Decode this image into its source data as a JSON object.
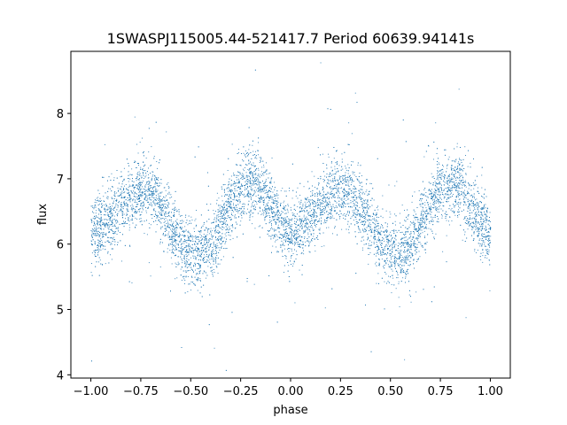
{
  "chart_data": {
    "type": "scatter",
    "title": "1SWASPJ115005.44-521417.7 Period 60639.94141s",
    "xlabel": "phase",
    "ylabel": "flux",
    "xlim": [
      -1.1,
      1.1
    ],
    "ylim": [
      3.95,
      8.95
    ],
    "xticks": [
      -1.0,
      -0.75,
      -0.5,
      -0.25,
      0.0,
      0.25,
      0.5,
      0.75,
      1.0
    ],
    "xtick_labels": [
      "−1.00",
      "−0.75",
      "−0.50",
      "−0.25",
      "0.00",
      "0.25",
      "0.50",
      "0.75",
      "1.00"
    ],
    "yticks": [
      4,
      5,
      6,
      7,
      8
    ],
    "ytick_labels": [
      "4",
      "5",
      "6",
      "7",
      "8"
    ],
    "grid": false,
    "marker_color": "#1f77b4",
    "series": [
      {
        "description_points": "phase-folded light curve, sampled along the visible trend",
        "x": [
          -1.0,
          -0.95,
          -0.9,
          -0.85,
          -0.8,
          -0.75,
          -0.7,
          -0.65,
          -0.6,
          -0.55,
          -0.5,
          -0.45,
          -0.4,
          -0.35,
          -0.3,
          -0.25,
          -0.2,
          -0.15,
          -0.1,
          -0.05,
          0.0,
          0.05,
          0.1,
          0.15,
          0.2,
          0.25,
          0.3,
          0.35,
          0.4,
          0.45,
          0.5,
          0.55,
          0.6,
          0.65,
          0.7,
          0.75,
          0.8,
          0.85,
          0.9,
          0.95,
          1.0
        ],
        "y": [
          6.2,
          6.25,
          6.4,
          6.6,
          6.75,
          6.85,
          6.8,
          6.6,
          6.3,
          6.0,
          5.9,
          5.85,
          6.0,
          6.3,
          6.6,
          6.85,
          6.95,
          6.85,
          6.55,
          6.3,
          6.2,
          6.25,
          6.4,
          6.6,
          6.75,
          6.85,
          6.8,
          6.6,
          6.3,
          6.0,
          5.9,
          5.85,
          6.0,
          6.3,
          6.6,
          6.85,
          6.95,
          6.85,
          6.55,
          6.3,
          6.2
        ],
        "scatter_sd": 0.25,
        "point_count": 9000
      }
    ]
  }
}
